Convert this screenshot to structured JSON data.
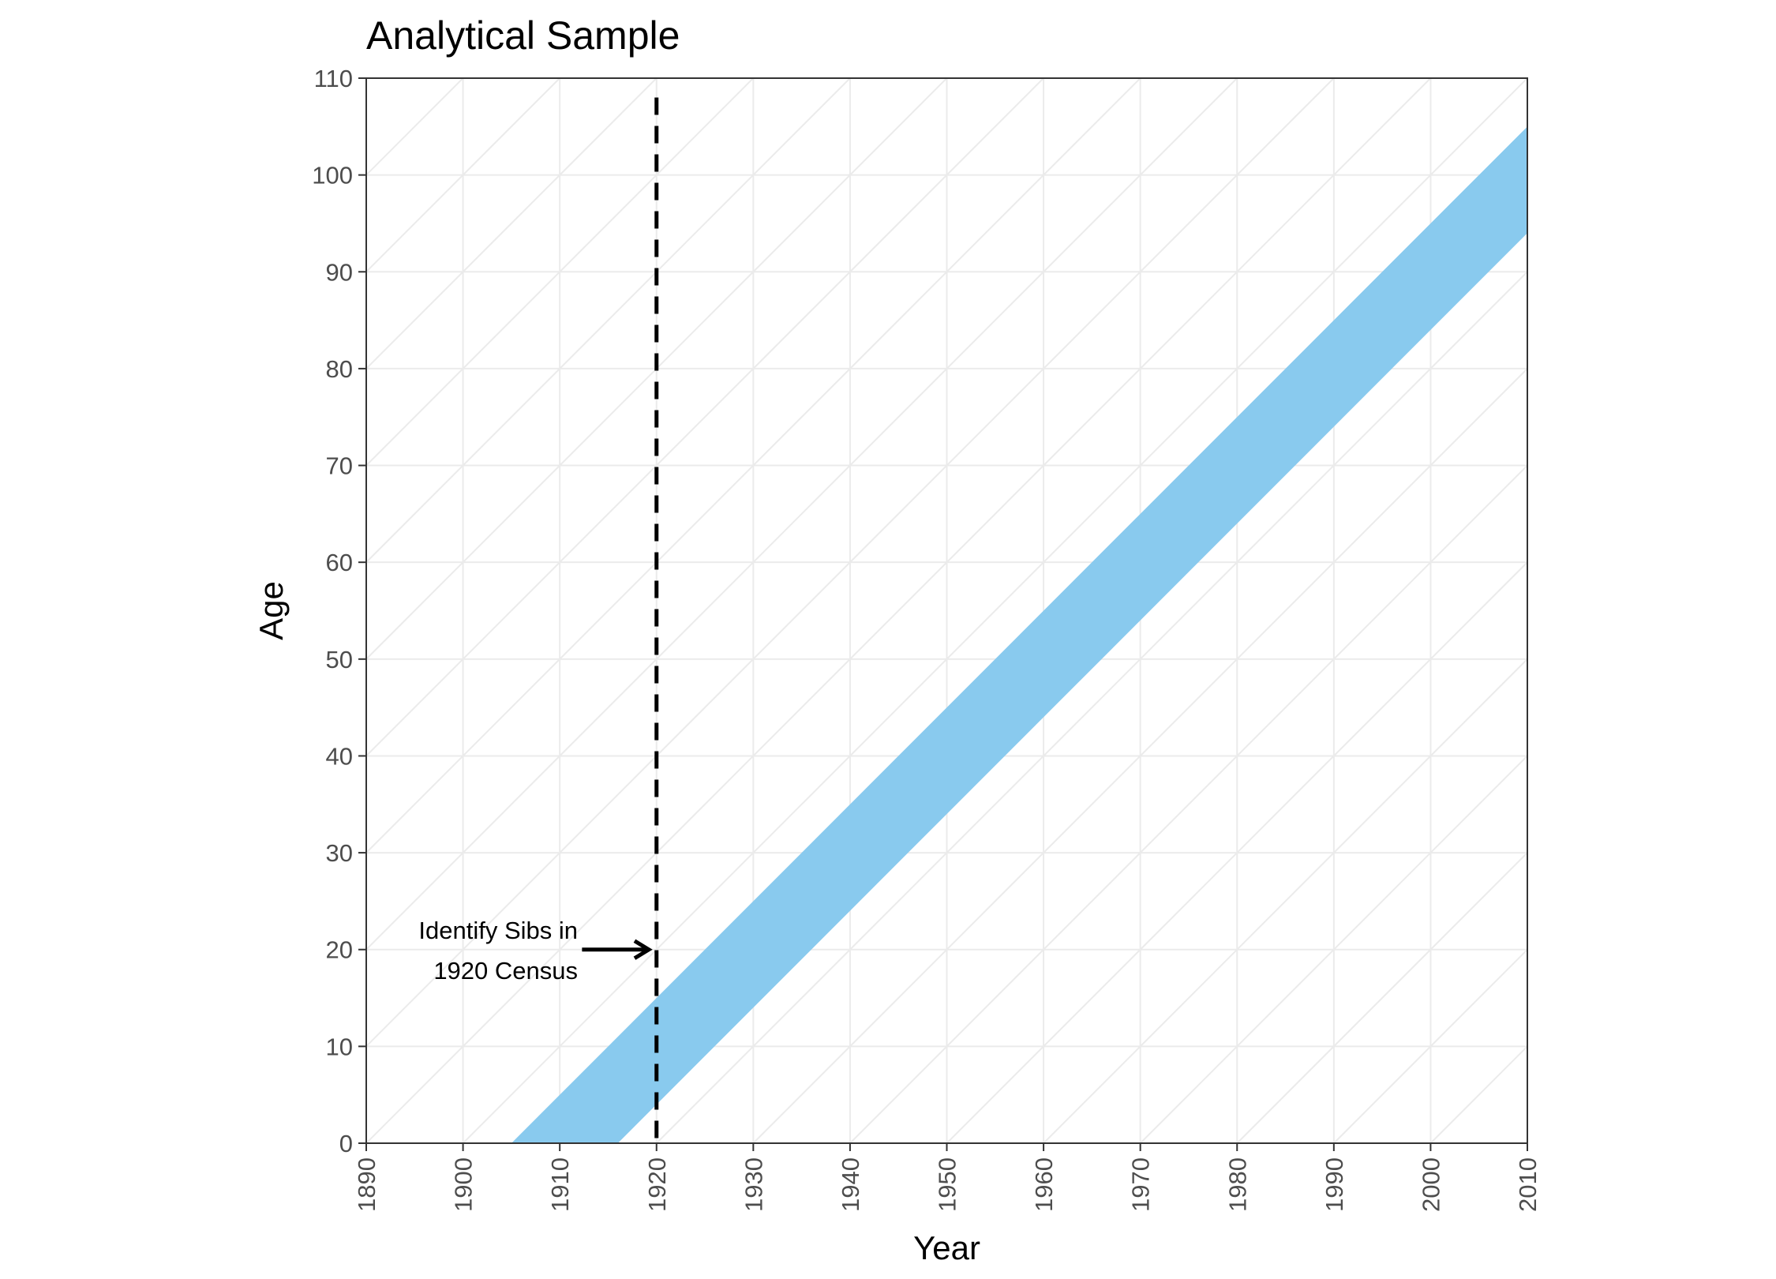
{
  "chart_data": {
    "type": "area",
    "title": "Analytical Sample",
    "xlabel": "Year",
    "ylabel": "Age",
    "xlim": [
      1890,
      2010
    ],
    "ylim": [
      0,
      110
    ],
    "x_ticks": [
      "1890",
      "1900",
      "1910",
      "1920",
      "1930",
      "1940",
      "1950",
      "1960",
      "1970",
      "1980",
      "1990",
      "2000",
      "2010"
    ],
    "y_ticks": [
      "0",
      "10",
      "20",
      "30",
      "40",
      "50",
      "60",
      "70",
      "80",
      "90",
      "100",
      "110"
    ],
    "grid": true,
    "lexis_diagonals": true,
    "band": {
      "birth_year_from": 1905,
      "birth_year_to": 1916,
      "color": "#89CAEE",
      "polygon": [
        {
          "x": 1905,
          "y": 0
        },
        {
          "x": 1916,
          "y": 0
        },
        {
          "x": 2010,
          "y": 94
        },
        {
          "x": 2010,
          "y": 105
        }
      ]
    },
    "reference_line": {
      "x": 1920,
      "style": "dashed",
      "color": "#000000"
    },
    "annotation": {
      "lines": [
        "Identify Sibs in",
        "1920 Census"
      ],
      "arrow_from": {
        "x": 1912.3,
        "y": 20
      },
      "arrow_to": {
        "x": 1919.2,
        "y": 20
      }
    },
    "colors": {
      "grid": "#ebebeb",
      "panel_border": "#333333",
      "tick_text": "#4d4d4d"
    }
  }
}
